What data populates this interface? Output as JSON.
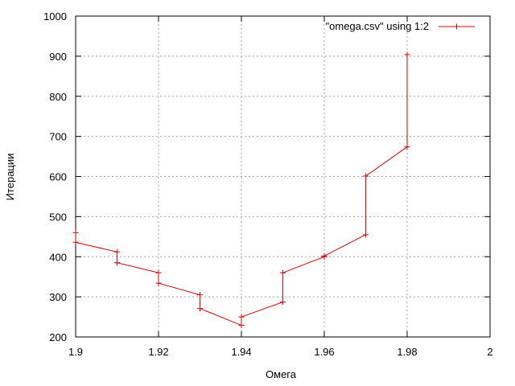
{
  "chart_data": {
    "type": "line",
    "title": "",
    "xlabel": "Омега",
    "ylabel": "Итерации",
    "xlim": [
      1.9,
      2.0
    ],
    "ylim": [
      200,
      1000
    ],
    "xticks": [
      "1.9",
      "1.92",
      "1.94",
      "1.96",
      "1.98",
      "2"
    ],
    "yticks": [
      "200",
      "300",
      "400",
      "500",
      "600",
      "700",
      "800",
      "900",
      "1000"
    ],
    "grid": true,
    "legend_position": "top-right",
    "series_color": "#e00000",
    "series": [
      {
        "name": "\"omega.csv\" using 1:2",
        "x": [
          1.9,
          1.9,
          1.91,
          1.91,
          1.92,
          1.92,
          1.93,
          1.93,
          1.94,
          1.94,
          1.95,
          1.95,
          1.96,
          1.96,
          1.97,
          1.97,
          1.98,
          1.98
        ],
        "y": [
          460,
          436,
          412,
          385,
          360,
          334,
          305,
          271,
          229,
          250,
          287,
          360,
          400,
          402,
          455,
          601,
          674,
          904
        ]
      }
    ]
  }
}
